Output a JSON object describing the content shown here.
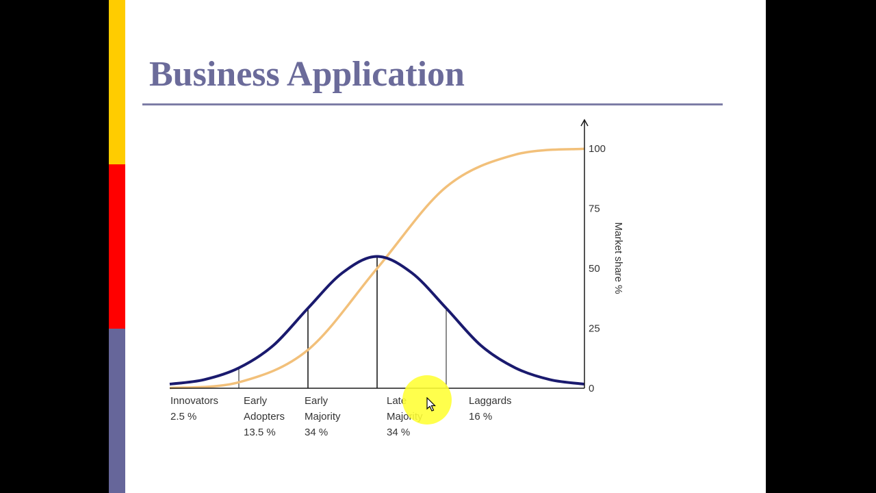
{
  "slide": {
    "title": "Business Application",
    "colors": {
      "title": "#6b6b9a",
      "rule": "#7d7da6",
      "bar_yellow": "#ffcc00",
      "bar_red": "#ff0000",
      "bar_blue": "#66669a",
      "cursor_highlight": "#ffff33"
    }
  },
  "chart_data": {
    "type": "line",
    "ylabel": "Market share %",
    "yticks": [
      0,
      25,
      50,
      75,
      100
    ],
    "ylim": [
      0,
      100
    ],
    "axis_side": "right",
    "series": [
      {
        "kind": "bell-curve",
        "color": "#1a1a6e",
        "peak_percent": 55,
        "points": [
          [
            -3,
            1.7
          ],
          [
            -2.5,
            3.6
          ],
          [
            -2,
            8.5
          ],
          [
            -1.5,
            17.9
          ],
          [
            -1,
            33.4
          ],
          [
            -0.5,
            48.2
          ],
          [
            0,
            55
          ],
          [
            0.5,
            48.2
          ],
          [
            1,
            33.4
          ],
          [
            1.5,
            17.9
          ],
          [
            2,
            8.5
          ],
          [
            2.5,
            3.6
          ],
          [
            3,
            1.7
          ]
        ]
      },
      {
        "kind": "cumulative-s-curve",
        "color": "#f2c07a",
        "points": [
          [
            -3,
            0.1
          ],
          [
            -2,
            2.5
          ],
          [
            -1,
            16
          ],
          [
            0,
            50
          ],
          [
            1,
            84
          ],
          [
            2,
            97.5
          ],
          [
            3,
            99.9
          ]
        ]
      }
    ],
    "segments": [
      {
        "line1": "Innovators",
        "line2": "2.5 %",
        "line3": "",
        "boundary": -2
      },
      {
        "line1": "Early",
        "line2": "Adopters",
        "line3": "13.5 %",
        "boundary": -1
      },
      {
        "line1": "Early",
        "line2": "Majority",
        "line3": "34 %",
        "boundary": 0
      },
      {
        "line1": "Late",
        "line2": "Majority",
        "line3": "34 %",
        "boundary": 1
      },
      {
        "line1": "Laggards",
        "line2": "16 %",
        "line3": "",
        "boundary": null
      }
    ]
  }
}
